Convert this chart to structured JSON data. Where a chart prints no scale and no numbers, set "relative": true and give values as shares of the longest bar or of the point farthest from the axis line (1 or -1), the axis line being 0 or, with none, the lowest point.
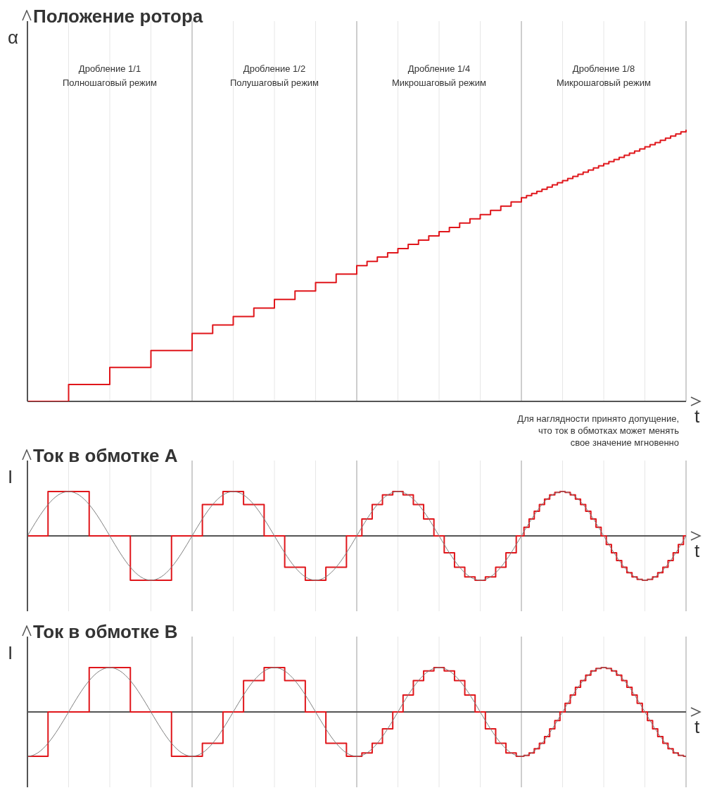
{
  "chart_data": [
    {
      "type": "step",
      "title": "Положение ротора",
      "ylabel": "α",
      "xlabel": "t",
      "relative": true,
      "grid": "x",
      "marker": "none",
      "line_style": "solid",
      "annotations": [
        "Дробление 1/1\nПолношаговый режим",
        "Дробление 1/2\nПолушаговый режим",
        "Дробление 1/4\nМикрошаговый режим",
        "Дробление 1/8\nМикрошаговый режим",
        "Для наглядности принято допущение,\nчто ток в обмотках может менять\nсвое значение мгновенно"
      ],
      "categories": [
        null,
        null,
        null,
        null,
        null,
        null,
        null,
        null,
        null,
        null,
        null,
        null,
        null,
        null,
        null,
        null,
        null,
        null,
        null,
        null,
        null,
        null,
        null,
        null,
        null,
        null,
        null,
        null,
        null,
        null,
        null,
        null,
        null,
        null,
        null,
        null,
        null,
        null,
        null,
        null,
        null,
        null,
        null,
        null,
        null,
        null,
        null,
        null,
        null,
        null,
        null,
        null,
        null,
        null,
        null,
        null,
        null,
        null,
        null,
        null,
        null,
        null,
        null,
        null,
        null,
        null,
        null,
        null,
        null,
        null,
        null,
        null,
        null,
        null,
        null,
        null,
        null,
        null,
        null,
        null,
        null,
        null,
        null,
        null,
        null,
        null,
        null,
        null,
        null,
        null,
        null,
        null,
        null,
        null,
        null,
        null,
        null,
        null,
        null,
        null,
        null,
        null,
        null,
        null,
        null,
        null,
        null,
        null,
        null,
        null,
        null,
        null,
        null,
        null,
        null,
        null,
        null,
        null,
        null,
        null,
        null,
        null,
        null,
        null,
        null,
        null,
        null,
        null,
        null
      ],
      "series": [
        {
          "color": "#e0161b",
          "values": [
            0,
            0,
            0,
            0,
            0,
            0,
            0,
            0,
            0.0625,
            0.0625,
            0.0625,
            0.0625,
            0.0625,
            0.0625,
            0.0625,
            0.0625,
            0.125,
            0.125,
            0.125,
            0.125,
            0.125,
            0.125,
            0.125,
            0.125,
            0.1875,
            0.1875,
            0.1875,
            0.1875,
            0.1875,
            0.1875,
            0.1875,
            0.1875,
            0.25,
            0.25,
            0.25,
            0.25,
            0.2813,
            0.2813,
            0.2813,
            0.2813,
            0.3125,
            0.3125,
            0.3125,
            0.3125,
            0.3438,
            0.3438,
            0.3438,
            0.3438,
            0.375,
            0.375,
            0.375,
            0.375,
            0.4063,
            0.4063,
            0.4063,
            0.4063,
            0.4375,
            0.4375,
            0.4375,
            0.4375,
            0.4688,
            0.4688,
            0.4688,
            0.4688,
            0.5,
            0.5,
            0.5156,
            0.5156,
            0.5313,
            0.5313,
            0.5469,
            0.5469,
            0.5625,
            0.5625,
            0.5781,
            0.5781,
            0.5938,
            0.5938,
            0.6094,
            0.6094,
            0.625,
            0.625,
            0.6406,
            0.6406,
            0.6563,
            0.6563,
            0.6719,
            0.6719,
            0.6875,
            0.6875,
            0.7031,
            0.7031,
            0.7188,
            0.7188,
            0.7344,
            0.7344,
            0.75,
            0.7578,
            0.7656,
            0.7734,
            0.7813,
            0.7891,
            0.7969,
            0.8047,
            0.8125,
            0.8203,
            0.8281,
            0.8359,
            0.8438,
            0.8516,
            0.8594,
            0.8672,
            0.875,
            0.8828,
            0.8906,
            0.8984,
            0.9063,
            0.9141,
            0.9219,
            0.9297,
            0.9375,
            0.9453,
            0.9531,
            0.9609,
            0.9688,
            0.9766,
            0.9844,
            0.9922,
            1
          ]
        }
      ]
    },
    {
      "type": "step",
      "title": "Ток в обмотке A",
      "ylabel": "I",
      "xlabel": "t",
      "relative": true,
      "grid": "x",
      "marker": "none",
      "line_style": "solid",
      "categories": [
        null,
        null,
        null,
        null,
        null,
        null,
        null,
        null,
        null,
        null,
        null,
        null,
        null,
        null,
        null,
        null,
        null,
        null,
        null,
        null,
        null,
        null,
        null,
        null,
        null,
        null,
        null,
        null,
        null,
        null,
        null,
        null,
        null,
        null,
        null,
        null,
        null,
        null,
        null,
        null,
        null,
        null,
        null,
        null,
        null,
        null,
        null,
        null,
        null,
        null,
        null,
        null,
        null,
        null,
        null,
        null,
        null,
        null,
        null,
        null,
        null,
        null,
        null,
        null,
        null,
        null,
        null,
        null,
        null,
        null,
        null,
        null,
        null,
        null,
        null,
        null,
        null,
        null,
        null,
        null,
        null,
        null,
        null,
        null,
        null,
        null,
        null,
        null,
        null,
        null,
        null,
        null,
        null,
        null,
        null,
        null,
        null,
        null,
        null,
        null,
        null,
        null,
        null,
        null,
        null,
        null,
        null,
        null,
        null,
        null,
        null,
        null,
        null,
        null,
        null,
        null,
        null,
        null,
        null,
        null,
        null,
        null,
        null,
        null,
        null,
        null,
        null,
        null,
        null,
        null,
        null,
        null,
        null,
        null,
        null,
        null,
        null,
        null,
        null,
        null,
        null,
        null,
        null,
        null,
        null,
        null,
        null,
        null,
        null,
        null,
        null,
        null,
        null,
        null,
        null,
        null,
        null,
        null,
        null,
        null,
        null,
        null,
        null,
        null,
        null,
        null,
        null,
        null,
        null,
        null,
        null,
        null,
        null,
        null,
        null,
        null,
        null,
        null,
        null,
        null,
        null,
        null,
        null,
        null,
        null,
        null,
        null,
        null,
        null,
        null,
        null,
        null,
        null,
        null,
        null,
        null,
        null,
        null,
        null,
        null,
        null,
        null,
        null,
        null,
        null,
        null,
        null,
        null,
        null,
        null,
        null,
        null,
        null,
        null,
        null,
        null,
        null,
        null,
        null,
        null,
        null,
        null,
        null,
        null,
        null,
        null,
        null,
        null,
        null,
        null,
        null,
        null,
        null,
        null,
        null,
        null,
        null,
        null,
        null,
        null,
        null,
        null,
        null,
        null,
        null,
        null,
        null,
        null,
        null,
        null,
        null,
        null,
        null,
        null,
        null,
        null,
        null
      ],
      "series": [
        {
          "type": "line",
          "color": "#808080",
          "values": [
            0,
            0.098,
            0.195,
            0.29,
            0.383,
            0.471,
            0.556,
            0.634,
            0.707,
            0.773,
            0.831,
            0.882,
            0.924,
            0.957,
            0.981,
            0.995,
            1,
            0.995,
            0.981,
            0.957,
            0.924,
            0.882,
            0.831,
            0.773,
            0.707,
            0.634,
            0.556,
            0.471,
            0.383,
            0.29,
            0.195,
            0.098,
            0,
            -0.098,
            -0.195,
            -0.29,
            -0.383,
            -0.471,
            -0.556,
            -0.634,
            -0.707,
            -0.773,
            -0.831,
            -0.882,
            -0.924,
            -0.957,
            -0.981,
            -0.995,
            -1,
            -0.995,
            -0.981,
            -0.957,
            -0.924,
            -0.882,
            -0.831,
            -0.773,
            -0.707,
            -0.634,
            -0.556,
            -0.471,
            -0.383,
            -0.29,
            -0.195,
            -0.098,
            0,
            0.098,
            0.195,
            0.29,
            0.383,
            0.471,
            0.556,
            0.634,
            0.707,
            0.773,
            0.831,
            0.882,
            0.924,
            0.957,
            0.981,
            0.995,
            1,
            0.995,
            0.981,
            0.957,
            0.924,
            0.882,
            0.831,
            0.773,
            0.707,
            0.634,
            0.556,
            0.471,
            0.383,
            0.29,
            0.195,
            0.098,
            0,
            -0.098,
            -0.195,
            -0.29,
            -0.383,
            -0.471,
            -0.556,
            -0.634,
            -0.707,
            -0.773,
            -0.831,
            -0.882,
            -0.924,
            -0.957,
            -0.981,
            -0.995,
            -1,
            -0.995,
            -0.981,
            -0.957,
            -0.924,
            -0.882,
            -0.831,
            -0.773,
            -0.707,
            -0.634,
            -0.556,
            -0.471,
            -0.383,
            -0.29,
            -0.195,
            -0.098,
            0,
            0.098,
            0.195,
            0.29,
            0.383,
            0.471,
            0.556,
            0.634,
            0.707,
            0.773,
            0.831,
            0.882,
            0.924,
            0.957,
            0.981,
            0.995,
            1,
            0.995,
            0.981,
            0.957,
            0.924,
            0.882,
            0.831,
            0.773,
            0.707,
            0.634,
            0.556,
            0.471,
            0.383,
            0.29,
            0.195,
            0.098,
            0,
            -0.098,
            -0.195,
            -0.29,
            -0.383,
            -0.471,
            -0.556,
            -0.634,
            -0.707,
            -0.773,
            -0.831,
            -0.882,
            -0.924,
            -0.957,
            -0.981,
            -0.995,
            -1,
            -0.995,
            -0.981,
            -0.957,
            -0.924,
            -0.882,
            -0.831,
            -0.773,
            -0.707,
            -0.634,
            -0.556,
            -0.471,
            -0.383,
            -0.29,
            -0.195,
            -0.098,
            0,
            0.098,
            0.195,
            0.29,
            0.383,
            0.471,
            0.556,
            0.634,
            0.707,
            0.773,
            0.831,
            0.882,
            0.924,
            0.957,
            0.981,
            0.995,
            1,
            0.995,
            0.981,
            0.957,
            0.924,
            0.882,
            0.831,
            0.773,
            0.707,
            0.634,
            0.556,
            0.471,
            0.383,
            0.29,
            0.195,
            0.098,
            0,
            -0.098,
            -0.195,
            -0.29,
            -0.383,
            -0.471,
            -0.556,
            -0.634,
            -0.707,
            -0.773,
            -0.831,
            -0.882,
            -0.924,
            -0.957,
            -0.981,
            -0.995,
            -1,
            -0.995,
            -0.981,
            -0.957,
            -0.924,
            -0.882,
            -0.831,
            -0.773,
            -0.707,
            -0.634,
            -0.556,
            -0.471,
            -0.383,
            -0.29,
            -0.195,
            -0.098,
            0
          ]
        },
        {
          "color": "#e0161b",
          "values": [
            0,
            0,
            0,
            0,
            0,
            0,
            0,
            0,
            1,
            1,
            1,
            1,
            1,
            1,
            1,
            1,
            1,
            1,
            1,
            1,
            1,
            1,
            1,
            1,
            0,
            0,
            0,
            0,
            0,
            0,
            0,
            0,
            0,
            0,
            0,
            0,
            0,
            0,
            0,
            0,
            -1,
            -1,
            -1,
            -1,
            -1,
            -1,
            -1,
            -1,
            -1,
            -1,
            -1,
            -1,
            -1,
            -1,
            -1,
            -1,
            0,
            0,
            0,
            0,
            0,
            0,
            0,
            0,
            0,
            0,
            0,
            0,
            0.707,
            0.707,
            0.707,
            0.707,
            0.707,
            0.707,
            0.707,
            0.707,
            1,
            1,
            1,
            1,
            1,
            1,
            1,
            1,
            0.707,
            0.707,
            0.707,
            0.707,
            0.707,
            0.707,
            0.707,
            0.707,
            0,
            0,
            0,
            0,
            0,
            0,
            0,
            0,
            -0.707,
            -0.707,
            -0.707,
            -0.707,
            -0.707,
            -0.707,
            -0.707,
            -0.707,
            -1,
            -1,
            -1,
            -1,
            -1,
            -1,
            -1,
            -1,
            -0.707,
            -0.707,
            -0.707,
            -0.707,
            -0.707,
            -0.707,
            -0.707,
            -0.707,
            0,
            0,
            0,
            0,
            0,
            0,
            0.383,
            0.383,
            0.383,
            0.383,
            0.707,
            0.707,
            0.707,
            0.707,
            0.924,
            0.924,
            0.924,
            0.924,
            1,
            1,
            1,
            1,
            0.924,
            0.924,
            0.924,
            0.924,
            0.707,
            0.707,
            0.707,
            0.707,
            0.383,
            0.383,
            0.383,
            0.383,
            0,
            0,
            0,
            0,
            -0.383,
            -0.383,
            -0.383,
            -0.383,
            -0.707,
            -0.707,
            -0.707,
            -0.707,
            -0.924,
            -0.924,
            -0.924,
            -0.924,
            -1,
            -1,
            -1,
            -1,
            -0.924,
            -0.924,
            -0.924,
            -0.924,
            -0.707,
            -0.707,
            -0.707,
            -0.707,
            -0.383,
            -0.383,
            -0.383,
            -0.383,
            0,
            0,
            0,
            0.195,
            0.195,
            0.383,
            0.383,
            0.556,
            0.556,
            0.707,
            0.707,
            0.831,
            0.831,
            0.924,
            0.924,
            0.981,
            0.981,
            1,
            1,
            0.981,
            0.981,
            0.924,
            0.924,
            0.831,
            0.831,
            0.707,
            0.707,
            0.556,
            0.556,
            0.383,
            0.383,
            0.195,
            0.195,
            0,
            0,
            -0.195,
            -0.195,
            -0.383,
            -0.383,
            -0.556,
            -0.556,
            -0.707,
            -0.707,
            -0.831,
            -0.831,
            -0.924,
            -0.924,
            -0.981,
            -0.981,
            -1,
            -1,
            -0.981,
            -0.981,
            -0.924,
            -0.924,
            -0.831,
            -0.831,
            -0.707,
            -0.707,
            -0.556,
            -0.556,
            -0.383,
            -0.383,
            -0.195,
            -0.195,
            0,
            0
          ]
        }
      ]
    },
    {
      "type": "step",
      "title": "Ток в обмотке B",
      "ylabel": "I",
      "xlabel": "t",
      "relative": true,
      "grid": "x",
      "marker": "none",
      "line_style": "solid",
      "categories": [
        null,
        null,
        null,
        null,
        null,
        null,
        null,
        null,
        null,
        null,
        null,
        null,
        null,
        null,
        null,
        null,
        null,
        null,
        null,
        null,
        null,
        null,
        null,
        null,
        null,
        null,
        null,
        null,
        null,
        null,
        null,
        null,
        null,
        null,
        null,
        null,
        null,
        null,
        null,
        null,
        null,
        null,
        null,
        null,
        null,
        null,
        null,
        null,
        null,
        null,
        null,
        null,
        null,
        null,
        null,
        null,
        null,
        null,
        null,
        null,
        null,
        null,
        null,
        null,
        null,
        null,
        null,
        null,
        null,
        null,
        null,
        null,
        null,
        null,
        null,
        null,
        null,
        null,
        null,
        null,
        null,
        null,
        null,
        null,
        null,
        null,
        null,
        null,
        null,
        null,
        null,
        null,
        null,
        null,
        null,
        null,
        null,
        null,
        null,
        null,
        null,
        null,
        null,
        null,
        null,
        null,
        null,
        null,
        null,
        null,
        null,
        null,
        null,
        null,
        null,
        null,
        null,
        null,
        null,
        null,
        null,
        null,
        null,
        null,
        null,
        null,
        null,
        null,
        null,
        null,
        null,
        null,
        null,
        null,
        null,
        null,
        null,
        null,
        null,
        null,
        null,
        null,
        null,
        null,
        null,
        null,
        null,
        null,
        null,
        null,
        null,
        null,
        null,
        null,
        null,
        null,
        null,
        null,
        null,
        null,
        null,
        null,
        null,
        null,
        null,
        null,
        null,
        null,
        null,
        null,
        null,
        null,
        null,
        null,
        null,
        null,
        null,
        null,
        null,
        null,
        null,
        null,
        null,
        null,
        null,
        null,
        null,
        null,
        null,
        null,
        null,
        null,
        null,
        null,
        null,
        null,
        null,
        null,
        null,
        null,
        null,
        null,
        null,
        null,
        null,
        null,
        null,
        null,
        null,
        null,
        null,
        null,
        null,
        null,
        null,
        null,
        null,
        null,
        null,
        null,
        null,
        null,
        null,
        null,
        null,
        null,
        null,
        null,
        null,
        null,
        null,
        null,
        null,
        null,
        null,
        null,
        null,
        null,
        null,
        null,
        null,
        null,
        null,
        null,
        null,
        null,
        null,
        null,
        null,
        null,
        null,
        null,
        null,
        null,
        null,
        null,
        null
      ],
      "series": [
        {
          "type": "line",
          "color": "#808080",
          "values": [
            -1,
            -0.995,
            -0.981,
            -0.957,
            -0.924,
            -0.882,
            -0.831,
            -0.773,
            -0.707,
            -0.634,
            -0.556,
            -0.471,
            -0.383,
            -0.29,
            -0.195,
            -0.098,
            0,
            0.098,
            0.195,
            0.29,
            0.383,
            0.471,
            0.556,
            0.634,
            0.707,
            0.773,
            0.831,
            0.882,
            0.924,
            0.957,
            0.981,
            0.995,
            1,
            0.995,
            0.981,
            0.957,
            0.924,
            0.882,
            0.831,
            0.773,
            0.707,
            0.634,
            0.556,
            0.471,
            0.383,
            0.29,
            0.195,
            0.098,
            0,
            -0.098,
            -0.195,
            -0.29,
            -0.383,
            -0.471,
            -0.556,
            -0.634,
            -0.707,
            -0.773,
            -0.831,
            -0.882,
            -0.924,
            -0.957,
            -0.981,
            -0.995,
            -1,
            -0.995,
            -0.981,
            -0.957,
            -0.924,
            -0.882,
            -0.831,
            -0.773,
            -0.707,
            -0.634,
            -0.556,
            -0.471,
            -0.383,
            -0.29,
            -0.195,
            -0.098,
            0,
            0.098,
            0.195,
            0.29,
            0.383,
            0.471,
            0.556,
            0.634,
            0.707,
            0.773,
            0.831,
            0.882,
            0.924,
            0.957,
            0.981,
            0.995,
            1,
            0.995,
            0.981,
            0.957,
            0.924,
            0.882,
            0.831,
            0.773,
            0.707,
            0.634,
            0.556,
            0.471,
            0.383,
            0.29,
            0.195,
            0.098,
            0,
            -0.098,
            -0.195,
            -0.29,
            -0.383,
            -0.471,
            -0.556,
            -0.634,
            -0.707,
            -0.773,
            -0.831,
            -0.882,
            -0.924,
            -0.957,
            -0.981,
            -0.995,
            -1,
            -0.995,
            -0.981,
            -0.957,
            -0.924,
            -0.882,
            -0.831,
            -0.773,
            -0.707,
            -0.634,
            -0.556,
            -0.471,
            -0.383,
            -0.29,
            -0.195,
            -0.098,
            0,
            0.098,
            0.195,
            0.29,
            0.383,
            0.471,
            0.556,
            0.634,
            0.707,
            0.773,
            0.831,
            0.882,
            0.924,
            0.957,
            0.981,
            0.995,
            1,
            0.995,
            0.981,
            0.957,
            0.924,
            0.882,
            0.831,
            0.773,
            0.707,
            0.634,
            0.556,
            0.471,
            0.383,
            0.29,
            0.195,
            0.098,
            0,
            -0.098,
            -0.195,
            -0.29,
            -0.383,
            -0.471,
            -0.556,
            -0.634,
            -0.707,
            -0.773,
            -0.831,
            -0.882,
            -0.924,
            -0.957,
            -0.981,
            -0.995,
            -1,
            -0.995,
            -0.981,
            -0.957,
            -0.924,
            -0.882,
            -0.831,
            -0.773,
            -0.707,
            -0.634,
            -0.556,
            -0.471,
            -0.383,
            -0.29,
            -0.195,
            -0.098,
            0,
            0.098,
            0.195,
            0.29,
            0.383,
            0.471,
            0.556,
            0.634,
            0.707,
            0.773,
            0.831,
            0.882,
            0.924,
            0.957,
            0.981,
            0.995,
            1,
            0.995,
            0.981,
            0.957,
            0.924,
            0.882,
            0.831,
            0.773,
            0.707,
            0.634,
            0.556,
            0.471,
            0.383,
            0.29,
            0.195,
            0.098,
            0,
            -0.098,
            -0.195,
            -0.29,
            -0.383,
            -0.471,
            -0.556,
            -0.634,
            -0.707,
            -0.773,
            -0.831,
            -0.882,
            -0.924,
            -0.957,
            -0.981,
            -0.995,
            -1
          ]
        },
        {
          "color": "#e0161b",
          "values": [
            -1,
            -1,
            -1,
            -1,
            -1,
            -1,
            -1,
            -1,
            0,
            0,
            0,
            0,
            0,
            0,
            0,
            0,
            0,
            0,
            0,
            0,
            0,
            0,
            0,
            0,
            1,
            1,
            1,
            1,
            1,
            1,
            1,
            1,
            1,
            1,
            1,
            1,
            1,
            1,
            1,
            1,
            0,
            0,
            0,
            0,
            0,
            0,
            0,
            0,
            0,
            0,
            0,
            0,
            0,
            0,
            0,
            0,
            -1,
            -1,
            -1,
            -1,
            -1,
            -1,
            -1,
            -1,
            -1,
            -1,
            -1,
            -1,
            -0.707,
            -0.707,
            -0.707,
            -0.707,
            -0.707,
            -0.707,
            -0.707,
            -0.707,
            0,
            0,
            0,
            0,
            0,
            0,
            0,
            0,
            0.707,
            0.707,
            0.707,
            0.707,
            0.707,
            0.707,
            0.707,
            0.707,
            1,
            1,
            1,
            1,
            1,
            1,
            1,
            1,
            0.707,
            0.707,
            0.707,
            0.707,
            0.707,
            0.707,
            0.707,
            0.707,
            0,
            0,
            0,
            0,
            0,
            0,
            0,
            0,
            -0.707,
            -0.707,
            -0.707,
            -0.707,
            -0.707,
            -0.707,
            -0.707,
            -0.707,
            -1,
            -1,
            -1,
            -1,
            -1,
            -1,
            -0.924,
            -0.924,
            -0.924,
            -0.924,
            -0.707,
            -0.707,
            -0.707,
            -0.707,
            -0.383,
            -0.383,
            -0.383,
            -0.383,
            0,
            0,
            0,
            0,
            0.383,
            0.383,
            0.383,
            0.383,
            0.707,
            0.707,
            0.707,
            0.707,
            0.924,
            0.924,
            0.924,
            0.924,
            1,
            1,
            1,
            1,
            0.924,
            0.924,
            0.924,
            0.924,
            0.707,
            0.707,
            0.707,
            0.707,
            0.383,
            0.383,
            0.383,
            0.383,
            0,
            0,
            0,
            0,
            -0.383,
            -0.383,
            -0.383,
            -0.383,
            -0.707,
            -0.707,
            -0.707,
            -0.707,
            -0.924,
            -0.924,
            -0.924,
            -0.924,
            -1,
            -1,
            -1,
            -0.981,
            -0.981,
            -0.924,
            -0.924,
            -0.831,
            -0.831,
            -0.707,
            -0.707,
            -0.556,
            -0.556,
            -0.383,
            -0.383,
            -0.195,
            -0.195,
            0,
            0,
            0.195,
            0.195,
            0.383,
            0.383,
            0.556,
            0.556,
            0.707,
            0.707,
            0.831,
            0.831,
            0.924,
            0.924,
            0.981,
            0.981,
            1,
            1,
            0.981,
            0.981,
            0.924,
            0.924,
            0.831,
            0.831,
            0.707,
            0.707,
            0.556,
            0.556,
            0.383,
            0.383,
            0.195,
            0.195,
            0,
            0,
            -0.195,
            -0.195,
            -0.383,
            -0.383,
            -0.556,
            -0.556,
            -0.707,
            -0.707,
            -0.831,
            -0.831,
            -0.924,
            -0.924,
            -0.981,
            -0.981,
            -1,
            -1
          ]
        }
      ]
    }
  ]
}
